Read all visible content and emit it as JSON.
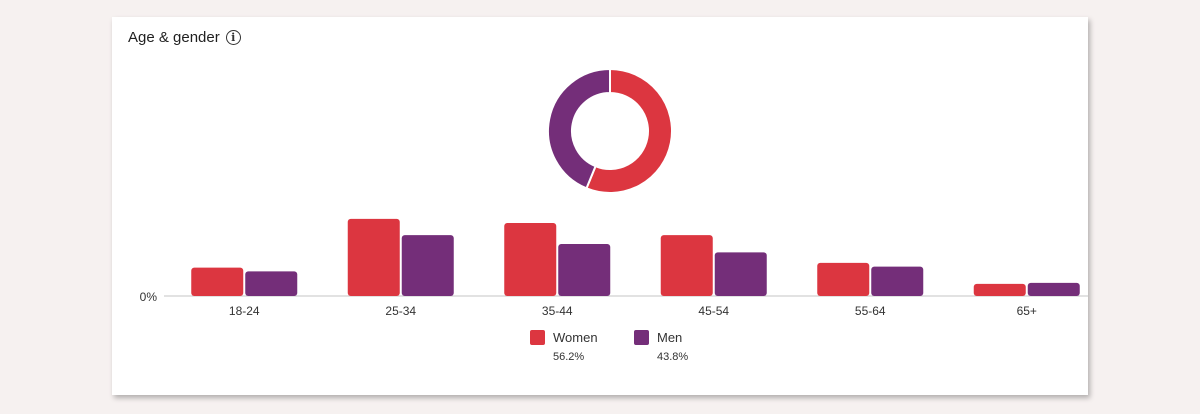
{
  "title": "Age & gender",
  "colors": {
    "women": "#dc3640",
    "men": "#742e79",
    "axis": "#d8d8d8"
  },
  "chart_data": [
    {
      "type": "pie",
      "donut": true,
      "slices": [
        {
          "name": "Women",
          "value": 56.2
        },
        {
          "name": "Men",
          "value": 43.8
        }
      ]
    },
    {
      "type": "bar",
      "categories": [
        "18-24",
        "25-34",
        "35-44",
        "45-54",
        "55-64",
        "65+"
      ],
      "series": [
        {
          "name": "Women",
          "values": [
            5.4,
            14.7,
            13.9,
            11.6,
            6.3,
            2.3
          ]
        },
        {
          "name": "Men",
          "values": [
            4.7,
            11.6,
            9.9,
            8.3,
            5.6,
            2.5
          ]
        }
      ],
      "ylim": [
        0,
        16
      ],
      "y_tick_label": "0%",
      "legend_position": "bottom",
      "legend": [
        {
          "name": "Women",
          "pct": "56.2%"
        },
        {
          "name": "Men",
          "pct": "43.8%"
        }
      ]
    }
  ]
}
